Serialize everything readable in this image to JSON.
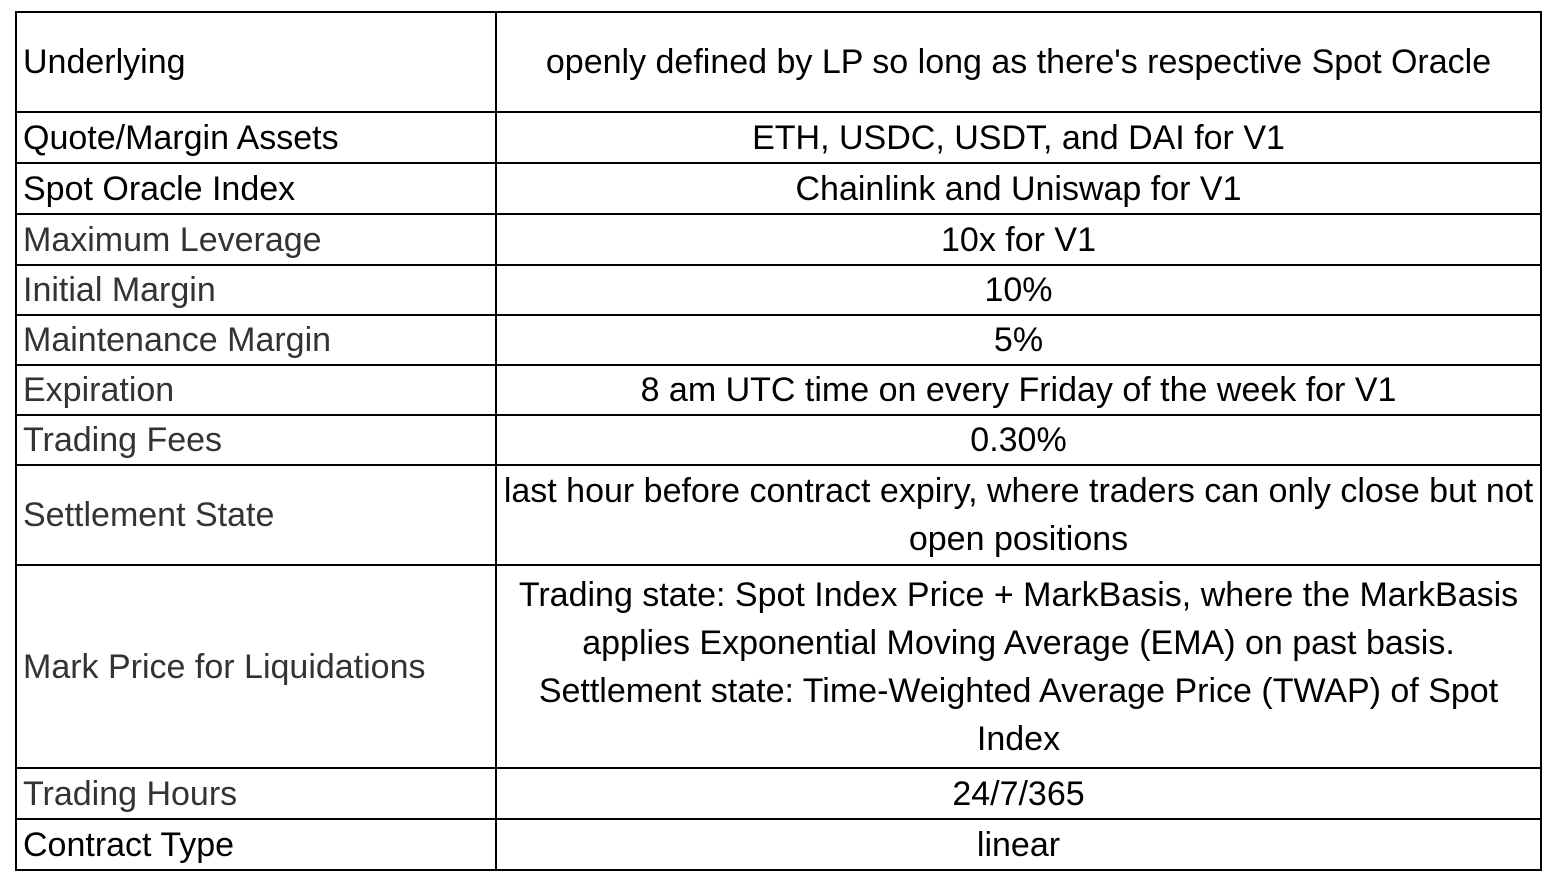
{
  "rows": [
    {
      "label": "Underlying",
      "value": "openly defined by LP so long as there's respective Spot Oracle"
    },
    {
      "label": "Quote/Margin Assets",
      "value": "ETH, USDC, USDT, and DAI for V1"
    },
    {
      "label": "Spot Oracle Index",
      "value": "Chainlink and Uniswap for V1"
    },
    {
      "label": "Maximum Leverage",
      "value": "10x for V1"
    },
    {
      "label": "Initial Margin",
      "value": "10%"
    },
    {
      "label": "Maintenance Margin",
      "value": "5%"
    },
    {
      "label": "Expiration",
      "value": "8 am UTC time on every Friday of the week for V1"
    },
    {
      "label": "Trading Fees",
      "value": "0.30%"
    },
    {
      "label": "Settlement State",
      "value": "last hour before contract expiry, where traders can only close but not open positions"
    },
    {
      "label": "Mark Price for Liquidations",
      "value": "Trading state: Spot Index Price + MarkBasis, where the MarkBasis applies Exponential Moving Average (EMA) on past basis. Settlement state:  Time-Weighted Average Price (TWAP) of Spot Index"
    },
    {
      "label": "Trading Hours",
      "value": "24/7/365"
    },
    {
      "label": "Contract Type",
      "value": "linear"
    }
  ]
}
